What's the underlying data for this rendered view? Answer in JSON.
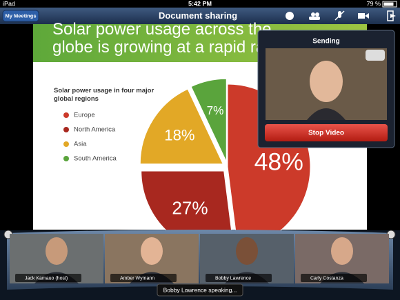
{
  "status_bar": {
    "carrier": "iPad",
    "time": "5:42 PM",
    "battery": "79 %"
  },
  "nav_bar": {
    "back_button": "My Meetings",
    "title": "Document sharing"
  },
  "chart_data": {
    "type": "pie",
    "title": "Solar power usage across the globe is growing at a rapid rate",
    "subtitle": "Solar power usage in four major global regions",
    "categories": [
      "Europe",
      "North America",
      "Asia",
      "South America"
    ],
    "values": [
      48,
      27,
      18,
      7
    ],
    "value_labels": [
      "48%",
      "27%",
      "18%",
      "7%"
    ],
    "colors": [
      "#cc3a2a",
      "#a8281f",
      "#e2a826",
      "#5aa43c"
    ]
  },
  "video_panel": {
    "header": "Sending",
    "button": "Stop Video"
  },
  "participants": [
    {
      "name": "Jack Kamauo (host)"
    },
    {
      "name": "Amber Wymann"
    },
    {
      "name": "Bobby Lawrence"
    },
    {
      "name": "Carly Costanza"
    }
  ],
  "speaking": "Bobby Lawrence speaking..."
}
